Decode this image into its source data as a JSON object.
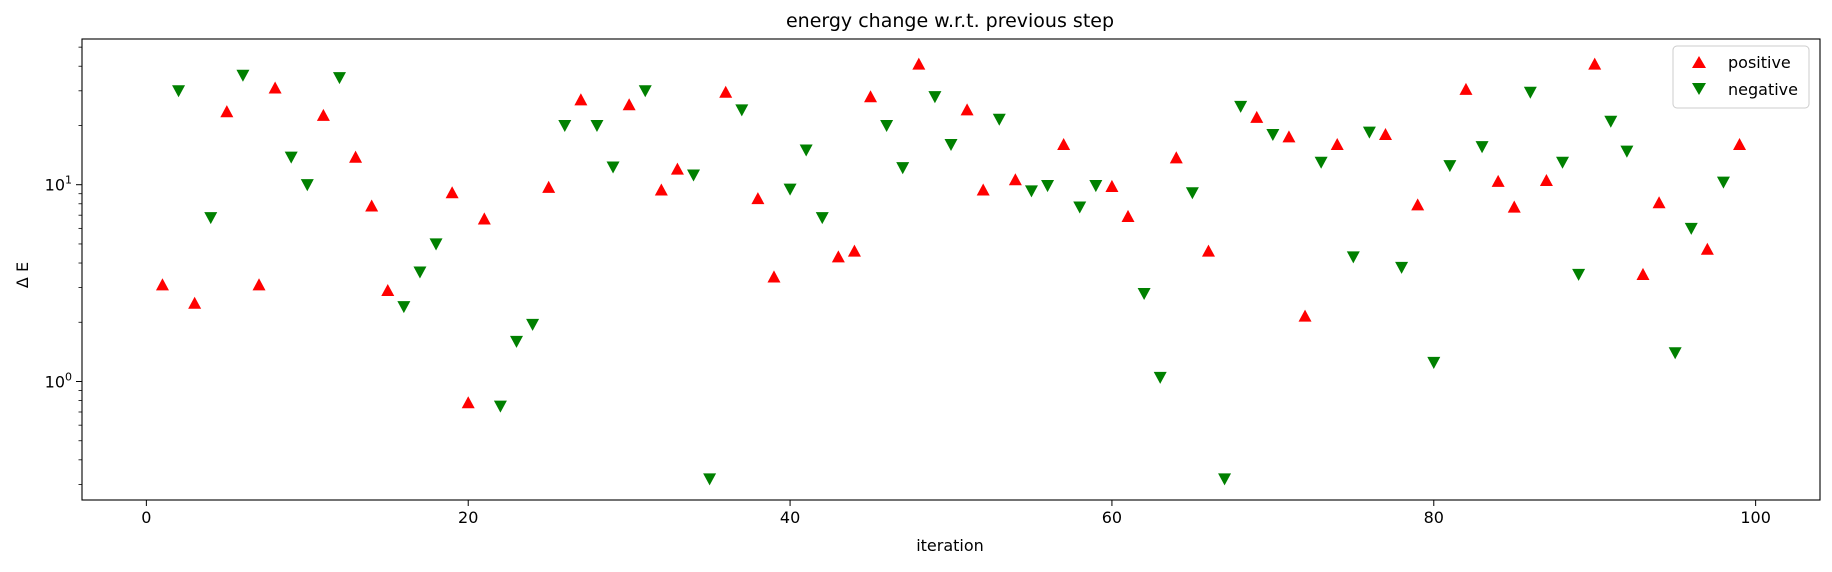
{
  "chart_data": {
    "type": "scatter",
    "title": "energy change w.r.t. previous step",
    "xlabel": "iteration",
    "ylabel": "Δ E",
    "yscale": "log",
    "xlim": [
      -4,
      104
    ],
    "ylim": [
      0.25,
      55
    ],
    "grid": false,
    "legend_position": "top-right",
    "x_ticks": [
      {
        "value": 0,
        "label": "0"
      },
      {
        "value": 20,
        "label": "20"
      },
      {
        "value": 40,
        "label": "40"
      },
      {
        "value": 60,
        "label": "60"
      },
      {
        "value": 80,
        "label": "80"
      },
      {
        "value": 100,
        "label": "100"
      }
    ],
    "y_ticks": [
      {
        "value": 1,
        "base": "10",
        "exp": "0"
      },
      {
        "value": 10,
        "base": "10",
        "exp": "1"
      }
    ],
    "y_minor_ticks": [
      0.3,
      0.4,
      0.5,
      0.6,
      0.7,
      0.8,
      0.9,
      2,
      3,
      4,
      5,
      6,
      7,
      8,
      9,
      20,
      30,
      40,
      50
    ],
    "series": [
      {
        "name": "positive",
        "marker": "triangle-up",
        "color": "#ff0000",
        "points": [
          {
            "x": 1,
            "y": 3.1
          },
          {
            "x": 3,
            "y": 2.5
          },
          {
            "x": 5,
            "y": 23.5
          },
          {
            "x": 7,
            "y": 3.1
          },
          {
            "x": 8,
            "y": 31
          },
          {
            "x": 11,
            "y": 22.5
          },
          {
            "x": 13,
            "y": 13.8
          },
          {
            "x": 14,
            "y": 7.8
          },
          {
            "x": 15,
            "y": 2.9
          },
          {
            "x": 19,
            "y": 9.1
          },
          {
            "x": 20,
            "y": 0.78
          },
          {
            "x": 21,
            "y": 6.7
          },
          {
            "x": 25,
            "y": 9.7
          },
          {
            "x": 27,
            "y": 27
          },
          {
            "x": 30,
            "y": 25.5
          },
          {
            "x": 32,
            "y": 9.4
          },
          {
            "x": 33,
            "y": 12
          },
          {
            "x": 36,
            "y": 29.5
          },
          {
            "x": 38,
            "y": 8.5
          },
          {
            "x": 39,
            "y": 3.4
          },
          {
            "x": 43,
            "y": 4.3
          },
          {
            "x": 44,
            "y": 4.6
          },
          {
            "x": 45,
            "y": 28
          },
          {
            "x": 48,
            "y": 41
          },
          {
            "x": 51,
            "y": 24
          },
          {
            "x": 52,
            "y": 9.4
          },
          {
            "x": 54,
            "y": 10.6
          },
          {
            "x": 57,
            "y": 16
          },
          {
            "x": 60,
            "y": 9.8
          },
          {
            "x": 61,
            "y": 6.9
          },
          {
            "x": 64,
            "y": 13.7
          },
          {
            "x": 66,
            "y": 4.6
          },
          {
            "x": 69,
            "y": 22
          },
          {
            "x": 71,
            "y": 17.5
          },
          {
            "x": 72,
            "y": 2.15
          },
          {
            "x": 74,
            "y": 16
          },
          {
            "x": 77,
            "y": 18
          },
          {
            "x": 79,
            "y": 7.9
          },
          {
            "x": 82,
            "y": 30.5
          },
          {
            "x": 84,
            "y": 10.4
          },
          {
            "x": 85,
            "y": 7.7
          },
          {
            "x": 87,
            "y": 10.5
          },
          {
            "x": 90,
            "y": 41
          },
          {
            "x": 93,
            "y": 3.5
          },
          {
            "x": 94,
            "y": 8.1
          },
          {
            "x": 97,
            "y": 4.7
          },
          {
            "x": 99,
            "y": 16
          }
        ]
      },
      {
        "name": "negative",
        "marker": "triangle-down",
        "color": "#008000",
        "points": [
          {
            "x": 2,
            "y": 30
          },
          {
            "x": 4,
            "y": 6.8
          },
          {
            "x": 6,
            "y": 36
          },
          {
            "x": 9,
            "y": 13.8
          },
          {
            "x": 10,
            "y": 10
          },
          {
            "x": 12,
            "y": 35
          },
          {
            "x": 16,
            "y": 2.4
          },
          {
            "x": 17,
            "y": 3.6
          },
          {
            "x": 18,
            "y": 5
          },
          {
            "x": 22,
            "y": 0.75
          },
          {
            "x": 23,
            "y": 1.6
          },
          {
            "x": 24,
            "y": 1.95
          },
          {
            "x": 26,
            "y": 20
          },
          {
            "x": 28,
            "y": 20
          },
          {
            "x": 29,
            "y": 12.3
          },
          {
            "x": 31,
            "y": 30
          },
          {
            "x": 34,
            "y": 11.2
          },
          {
            "x": 35,
            "y": 0.32
          },
          {
            "x": 37,
            "y": 24
          },
          {
            "x": 40,
            "y": 9.5
          },
          {
            "x": 41,
            "y": 15
          },
          {
            "x": 42,
            "y": 6.8
          },
          {
            "x": 46,
            "y": 20
          },
          {
            "x": 47,
            "y": 12.2
          },
          {
            "x": 49,
            "y": 28
          },
          {
            "x": 50,
            "y": 16
          },
          {
            "x": 53,
            "y": 21.5
          },
          {
            "x": 55,
            "y": 9.3
          },
          {
            "x": 56,
            "y": 9.9
          },
          {
            "x": 58,
            "y": 7.7
          },
          {
            "x": 59,
            "y": 9.9
          },
          {
            "x": 62,
            "y": 2.8
          },
          {
            "x": 63,
            "y": 1.05
          },
          {
            "x": 65,
            "y": 9.1
          },
          {
            "x": 67,
            "y": 0.32
          },
          {
            "x": 68,
            "y": 25
          },
          {
            "x": 70,
            "y": 18
          },
          {
            "x": 73,
            "y": 13
          },
          {
            "x": 75,
            "y": 4.3
          },
          {
            "x": 76,
            "y": 18.5
          },
          {
            "x": 78,
            "y": 3.8
          },
          {
            "x": 80,
            "y": 1.25
          },
          {
            "x": 81,
            "y": 12.5
          },
          {
            "x": 83,
            "y": 15.6
          },
          {
            "x": 86,
            "y": 29.5
          },
          {
            "x": 88,
            "y": 13
          },
          {
            "x": 89,
            "y": 3.5
          },
          {
            "x": 91,
            "y": 21
          },
          {
            "x": 92,
            "y": 14.8
          },
          {
            "x": 95,
            "y": 1.4
          },
          {
            "x": 96,
            "y": 6
          },
          {
            "x": 98,
            "y": 10.3
          }
        ]
      }
    ]
  }
}
